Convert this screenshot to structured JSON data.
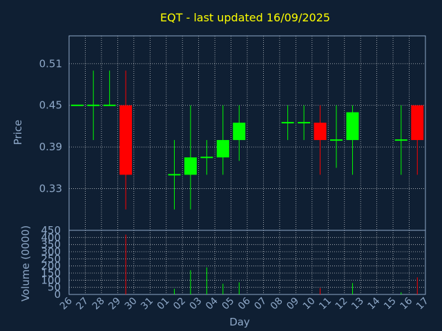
{
  "chart_data": [
    {
      "type": "candlestick",
      "title": "EQT - last updated 16/09/2025",
      "ylabel": "Price",
      "ylim": [
        0.27,
        0.55
      ],
      "yticks": [
        "0.33",
        "0.39",
        "0.45",
        "0.51"
      ],
      "grid": true,
      "colors": {
        "up": "#00ff00",
        "down": "#ff0000",
        "grid": "#ffffff",
        "frame": "#8fa9c9",
        "background": "#0f1f33",
        "title": "#ffff00",
        "text": "#8fa9c9"
      },
      "categories": [
        "26",
        "27",
        "28",
        "29",
        "30",
        "31",
        "01",
        "02",
        "03",
        "04",
        "05",
        "06",
        "07",
        "08",
        "09",
        "10",
        "11",
        "12",
        "13",
        "14",
        "15",
        "16",
        "17"
      ],
      "candles": [
        {
          "x": 0,
          "open": 0.45,
          "high": 0.45,
          "low": 0.45,
          "close": 0.45
        },
        {
          "x": 1,
          "open": 0.45,
          "high": 0.5,
          "low": 0.4,
          "close": 0.45
        },
        {
          "x": 2,
          "open": 0.45,
          "high": 0.5,
          "low": 0.45,
          "close": 0.45
        },
        {
          "x": 3,
          "open": 0.45,
          "high": 0.5,
          "low": 0.3,
          "close": 0.35
        },
        {
          "x": 6,
          "open": 0.35,
          "high": 0.4,
          "low": 0.3,
          "close": 0.35
        },
        {
          "x": 7,
          "open": 0.35,
          "high": 0.45,
          "low": 0.3,
          "close": 0.375
        },
        {
          "x": 8,
          "open": 0.375,
          "high": 0.4,
          "low": 0.35,
          "close": 0.375
        },
        {
          "x": 9,
          "open": 0.375,
          "high": 0.45,
          "low": 0.35,
          "close": 0.4
        },
        {
          "x": 10,
          "open": 0.4,
          "high": 0.45,
          "low": 0.37,
          "close": 0.425
        },
        {
          "x": 13,
          "open": 0.425,
          "high": 0.45,
          "low": 0.4,
          "close": 0.425
        },
        {
          "x": 14,
          "open": 0.425,
          "high": 0.45,
          "low": 0.4,
          "close": 0.425
        },
        {
          "x": 15,
          "open": 0.425,
          "high": 0.45,
          "low": 0.35,
          "close": 0.4
        },
        {
          "x": 16,
          "open": 0.4,
          "high": 0.45,
          "low": 0.36,
          "close": 0.4
        },
        {
          "x": 17,
          "open": 0.4,
          "high": 0.45,
          "low": 0.35,
          "close": 0.44
        },
        {
          "x": 20,
          "open": 0.4,
          "high": 0.45,
          "low": 0.35,
          "close": 0.4
        },
        {
          "x": 21,
          "open": 0.45,
          "high": 0.45,
          "low": 0.35,
          "close": 0.4
        }
      ]
    },
    {
      "type": "bar",
      "ylabel": "Volume (0000)",
      "xlabel": "Day",
      "ylim": [
        0,
        450
      ],
      "yticks": [
        "0",
        "50",
        "100",
        "150",
        "200",
        "250",
        "300",
        "350",
        "400",
        "450"
      ],
      "categories": [
        "26",
        "27",
        "28",
        "29",
        "30",
        "31",
        "01",
        "02",
        "03",
        "04",
        "05",
        "06",
        "07",
        "08",
        "09",
        "10",
        "11",
        "12",
        "13",
        "14",
        "15",
        "16",
        "17"
      ],
      "bars": [
        {
          "x": 3,
          "value": 420,
          "color": "#ff0000"
        },
        {
          "x": 6,
          "value": 40,
          "color": "#00ff00"
        },
        {
          "x": 7,
          "value": 170,
          "color": "#00ff00"
        },
        {
          "x": 8,
          "value": 190,
          "color": "#00ff00"
        },
        {
          "x": 9,
          "value": 75,
          "color": "#00ff00"
        },
        {
          "x": 10,
          "value": 85,
          "color": "#00ff00"
        },
        {
          "x": 15,
          "value": 45,
          "color": "#ff0000"
        },
        {
          "x": 17,
          "value": 80,
          "color": "#00ff00"
        },
        {
          "x": 20,
          "value": 15,
          "color": "#00ff00"
        },
        {
          "x": 21,
          "value": 120,
          "color": "#ff0000"
        }
      ]
    }
  ]
}
